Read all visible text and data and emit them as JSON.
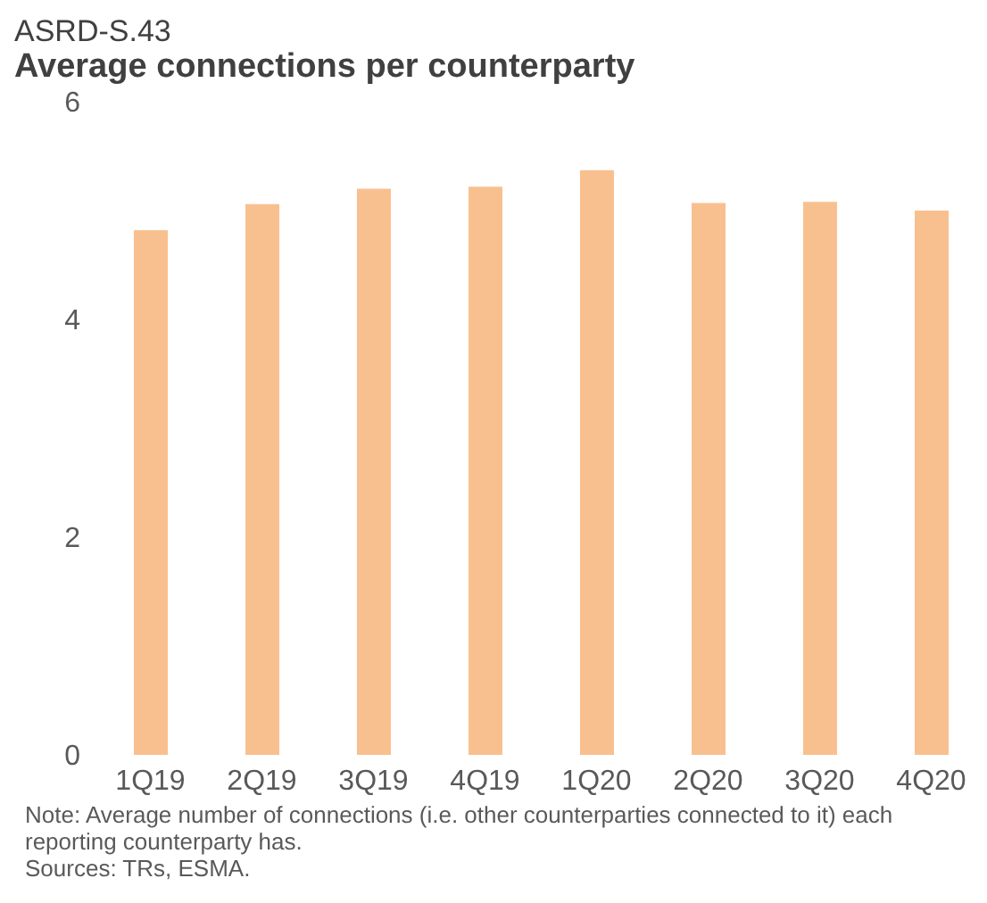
{
  "chart_data": {
    "type": "bar",
    "title": "ASRD-S.43",
    "subtitle": "Average connections per counterparty",
    "categories": [
      "1Q19",
      "2Q19",
      "3Q19",
      "4Q19",
      "1Q20",
      "2Q20",
      "3Q20",
      "4Q20"
    ],
    "values": [
      4.82,
      5.06,
      5.2,
      5.22,
      5.37,
      5.07,
      5.08,
      5.0
    ],
    "color": "#f9c08f",
    "ylim": [
      0,
      6
    ],
    "yticks": [
      0,
      2,
      4,
      6
    ],
    "grid": false,
    "annotations": [
      "Note: Average number of connections (i.e. other counterparties connected to it) each reporting counterparty has.",
      "Sources: TRs, ESMA."
    ]
  }
}
